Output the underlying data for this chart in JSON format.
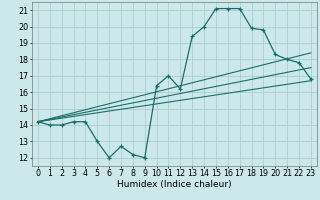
{
  "bg_color": "#cce8ea",
  "grid_color": "#aacfd2",
  "line_color": "#1a6e6a",
  "main_x": [
    0,
    1,
    2,
    3,
    4,
    5,
    6,
    7,
    8,
    9,
    10,
    11,
    12,
    13,
    14,
    15,
    16,
    17,
    18,
    19,
    20,
    21,
    22,
    23
  ],
  "main_y": [
    14.2,
    14.0,
    14.0,
    14.2,
    14.2,
    13.0,
    12.0,
    12.7,
    12.2,
    12.0,
    16.4,
    17.0,
    16.2,
    19.4,
    20.0,
    21.1,
    21.1,
    21.1,
    19.9,
    19.8,
    18.3,
    18.0,
    17.8,
    16.8
  ],
  "trend1_x": [
    0,
    23
  ],
  "trend1_y": [
    14.2,
    18.4
  ],
  "trend2_x": [
    0,
    23
  ],
  "trend2_y": [
    14.2,
    17.5
  ],
  "trend3_x": [
    0,
    23
  ],
  "trend3_y": [
    14.2,
    16.7
  ],
  "xlabel": "Humidex (Indice chaleur)",
  "xlim": [
    -0.5,
    23.5
  ],
  "ylim": [
    11.5,
    21.5
  ],
  "xticks": [
    0,
    1,
    2,
    3,
    4,
    5,
    6,
    7,
    8,
    9,
    10,
    11,
    12,
    13,
    14,
    15,
    16,
    17,
    18,
    19,
    20,
    21,
    22,
    23
  ],
  "yticks": [
    12,
    13,
    14,
    15,
    16,
    17,
    18,
    19,
    20,
    21
  ],
  "xlabel_fontsize": 6.5,
  "tick_fontsize": 5.8
}
